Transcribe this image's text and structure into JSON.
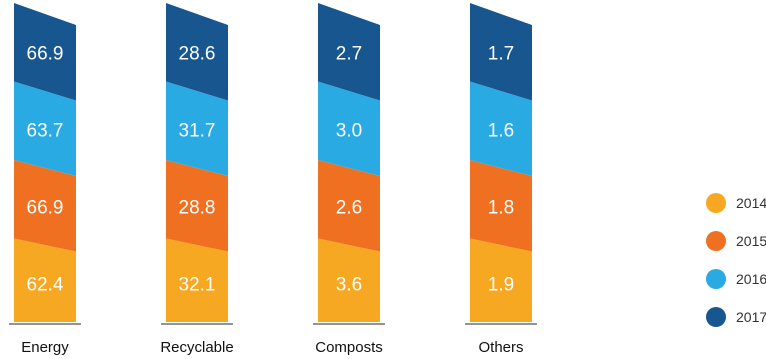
{
  "chart_data": {
    "type": "bar",
    "stacked": true,
    "categories": [
      "Energy",
      "Recyclable",
      "Composts",
      "Others"
    ],
    "series": [
      {
        "name": "2014",
        "color": "#F7A823",
        "values": [
          62.4,
          32.1,
          3.6,
          1.9
        ]
      },
      {
        "name": "2015",
        "color": "#F07022",
        "values": [
          66.9,
          28.8,
          2.6,
          1.8
        ]
      },
      {
        "name": "2016",
        "color": "#2AAAE2",
        "values": [
          63.7,
          31.7,
          3.0,
          1.6
        ]
      },
      {
        "name": "2017",
        "color": "#17568E",
        "values": [
          66.9,
          28.6,
          2.7,
          1.7
        ]
      }
    ],
    "legend_position": "right",
    "grid": false,
    "title": "",
    "xlabel": "",
    "ylabel": ""
  }
}
